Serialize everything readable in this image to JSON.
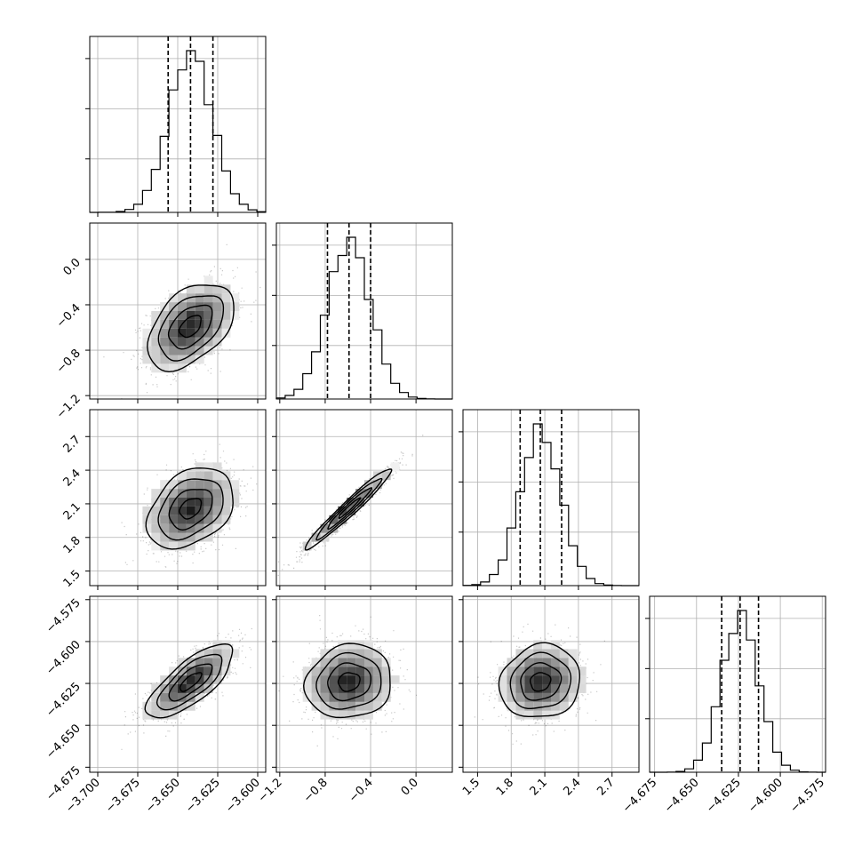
{
  "chart_data": {
    "type": "corner",
    "title": "",
    "parameters": [
      "",
      "",
      "",
      ""
    ],
    "ranges": [
      [
        -3.705,
        -3.595
      ],
      [
        -1.23,
        0.32
      ],
      [
        1.37,
        2.94
      ],
      [
        -4.678,
        -4.573
      ]
    ],
    "x_ticks": [
      [
        "−3.700",
        "−3.675",
        "−3.650",
        "−3.625",
        "−3.600"
      ],
      [
        "−1.2",
        "−0.8",
        "−0.4",
        "0.0"
      ],
      [
        "1.5",
        "1.8",
        "2.1",
        "2.4",
        "2.7"
      ],
      [
        "−4.675",
        "−4.650",
        "−4.625",
        "−4.600",
        "−4.575"
      ]
    ],
    "y_ticks": [
      [],
      [
        "−1.2",
        "−0.8",
        "−0.4",
        "0.0"
      ],
      [
        "1.5",
        "1.8",
        "2.1",
        "2.4",
        "2.7"
      ],
      [
        "−4.675",
        "−4.650",
        "−4.625",
        "−4.600",
        "−4.575"
      ]
    ],
    "quantiles": [
      [
        -3.656,
        -3.642,
        -3.628
      ],
      [
        -0.78,
        -0.59,
        -0.4
      ],
      [
        1.88,
        2.06,
        2.25
      ],
      [
        -4.635,
        -4.624,
        -4.613
      ]
    ],
    "medians": [
      -3.642,
      -0.59,
      2.06,
      -4.624
    ],
    "std": [
      0.0135,
      0.19,
      0.18,
      0.011
    ],
    "correlations": [
      [
        1,
        0.45,
        0.35,
        0.75
      ],
      [
        0.45,
        1,
        0.97,
        0.1
      ],
      [
        0.35,
        0.97,
        1,
        0.1
      ],
      [
        0.75,
        0.1,
        0.1,
        1
      ]
    ],
    "histogram_bins": 20,
    "contour_levels": [
      0.5,
      1.0,
      1.5,
      2.0
    ],
    "grid": true,
    "colors": {
      "hist": "#000000",
      "scatter": "#000000",
      "density": "#000000",
      "grid": "#b0b0b0"
    }
  }
}
